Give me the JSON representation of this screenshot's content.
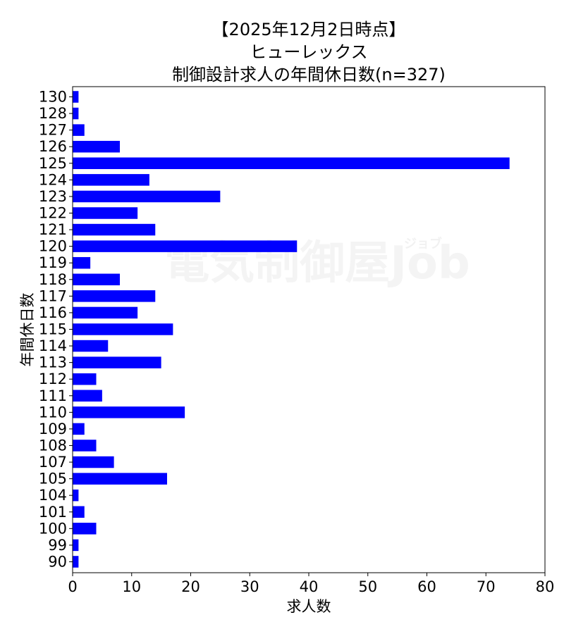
{
  "chart_data": {
    "type": "bar",
    "orientation": "horizontal",
    "title_lines": [
      "【2025年12月2日時点】",
      "ヒューレックス",
      "制御設計求人の年間休日数(n=327)"
    ],
    "xlabel": "求人数",
    "ylabel": "年間休日数",
    "xlim": [
      0,
      80
    ],
    "xticks": [
      0,
      10,
      20,
      30,
      40,
      50,
      60,
      70,
      80
    ],
    "grid": false,
    "bar_color": "#0000ff",
    "watermark": "電気制御屋Job",
    "watermark_small": "ジョブ",
    "categories": [
      "130",
      "128",
      "127",
      "126",
      "125",
      "124",
      "123",
      "122",
      "121",
      "120",
      "119",
      "118",
      "117",
      "116",
      "115",
      "114",
      "113",
      "112",
      "111",
      "110",
      "109",
      "108",
      "107",
      "105",
      "104",
      "101",
      "100",
      "99",
      "90"
    ],
    "values": [
      1,
      1,
      2,
      8,
      74,
      13,
      25,
      11,
      14,
      38,
      3,
      8,
      14,
      11,
      17,
      6,
      15,
      4,
      5,
      19,
      2,
      4,
      7,
      16,
      1,
      2,
      4,
      1,
      1
    ]
  }
}
